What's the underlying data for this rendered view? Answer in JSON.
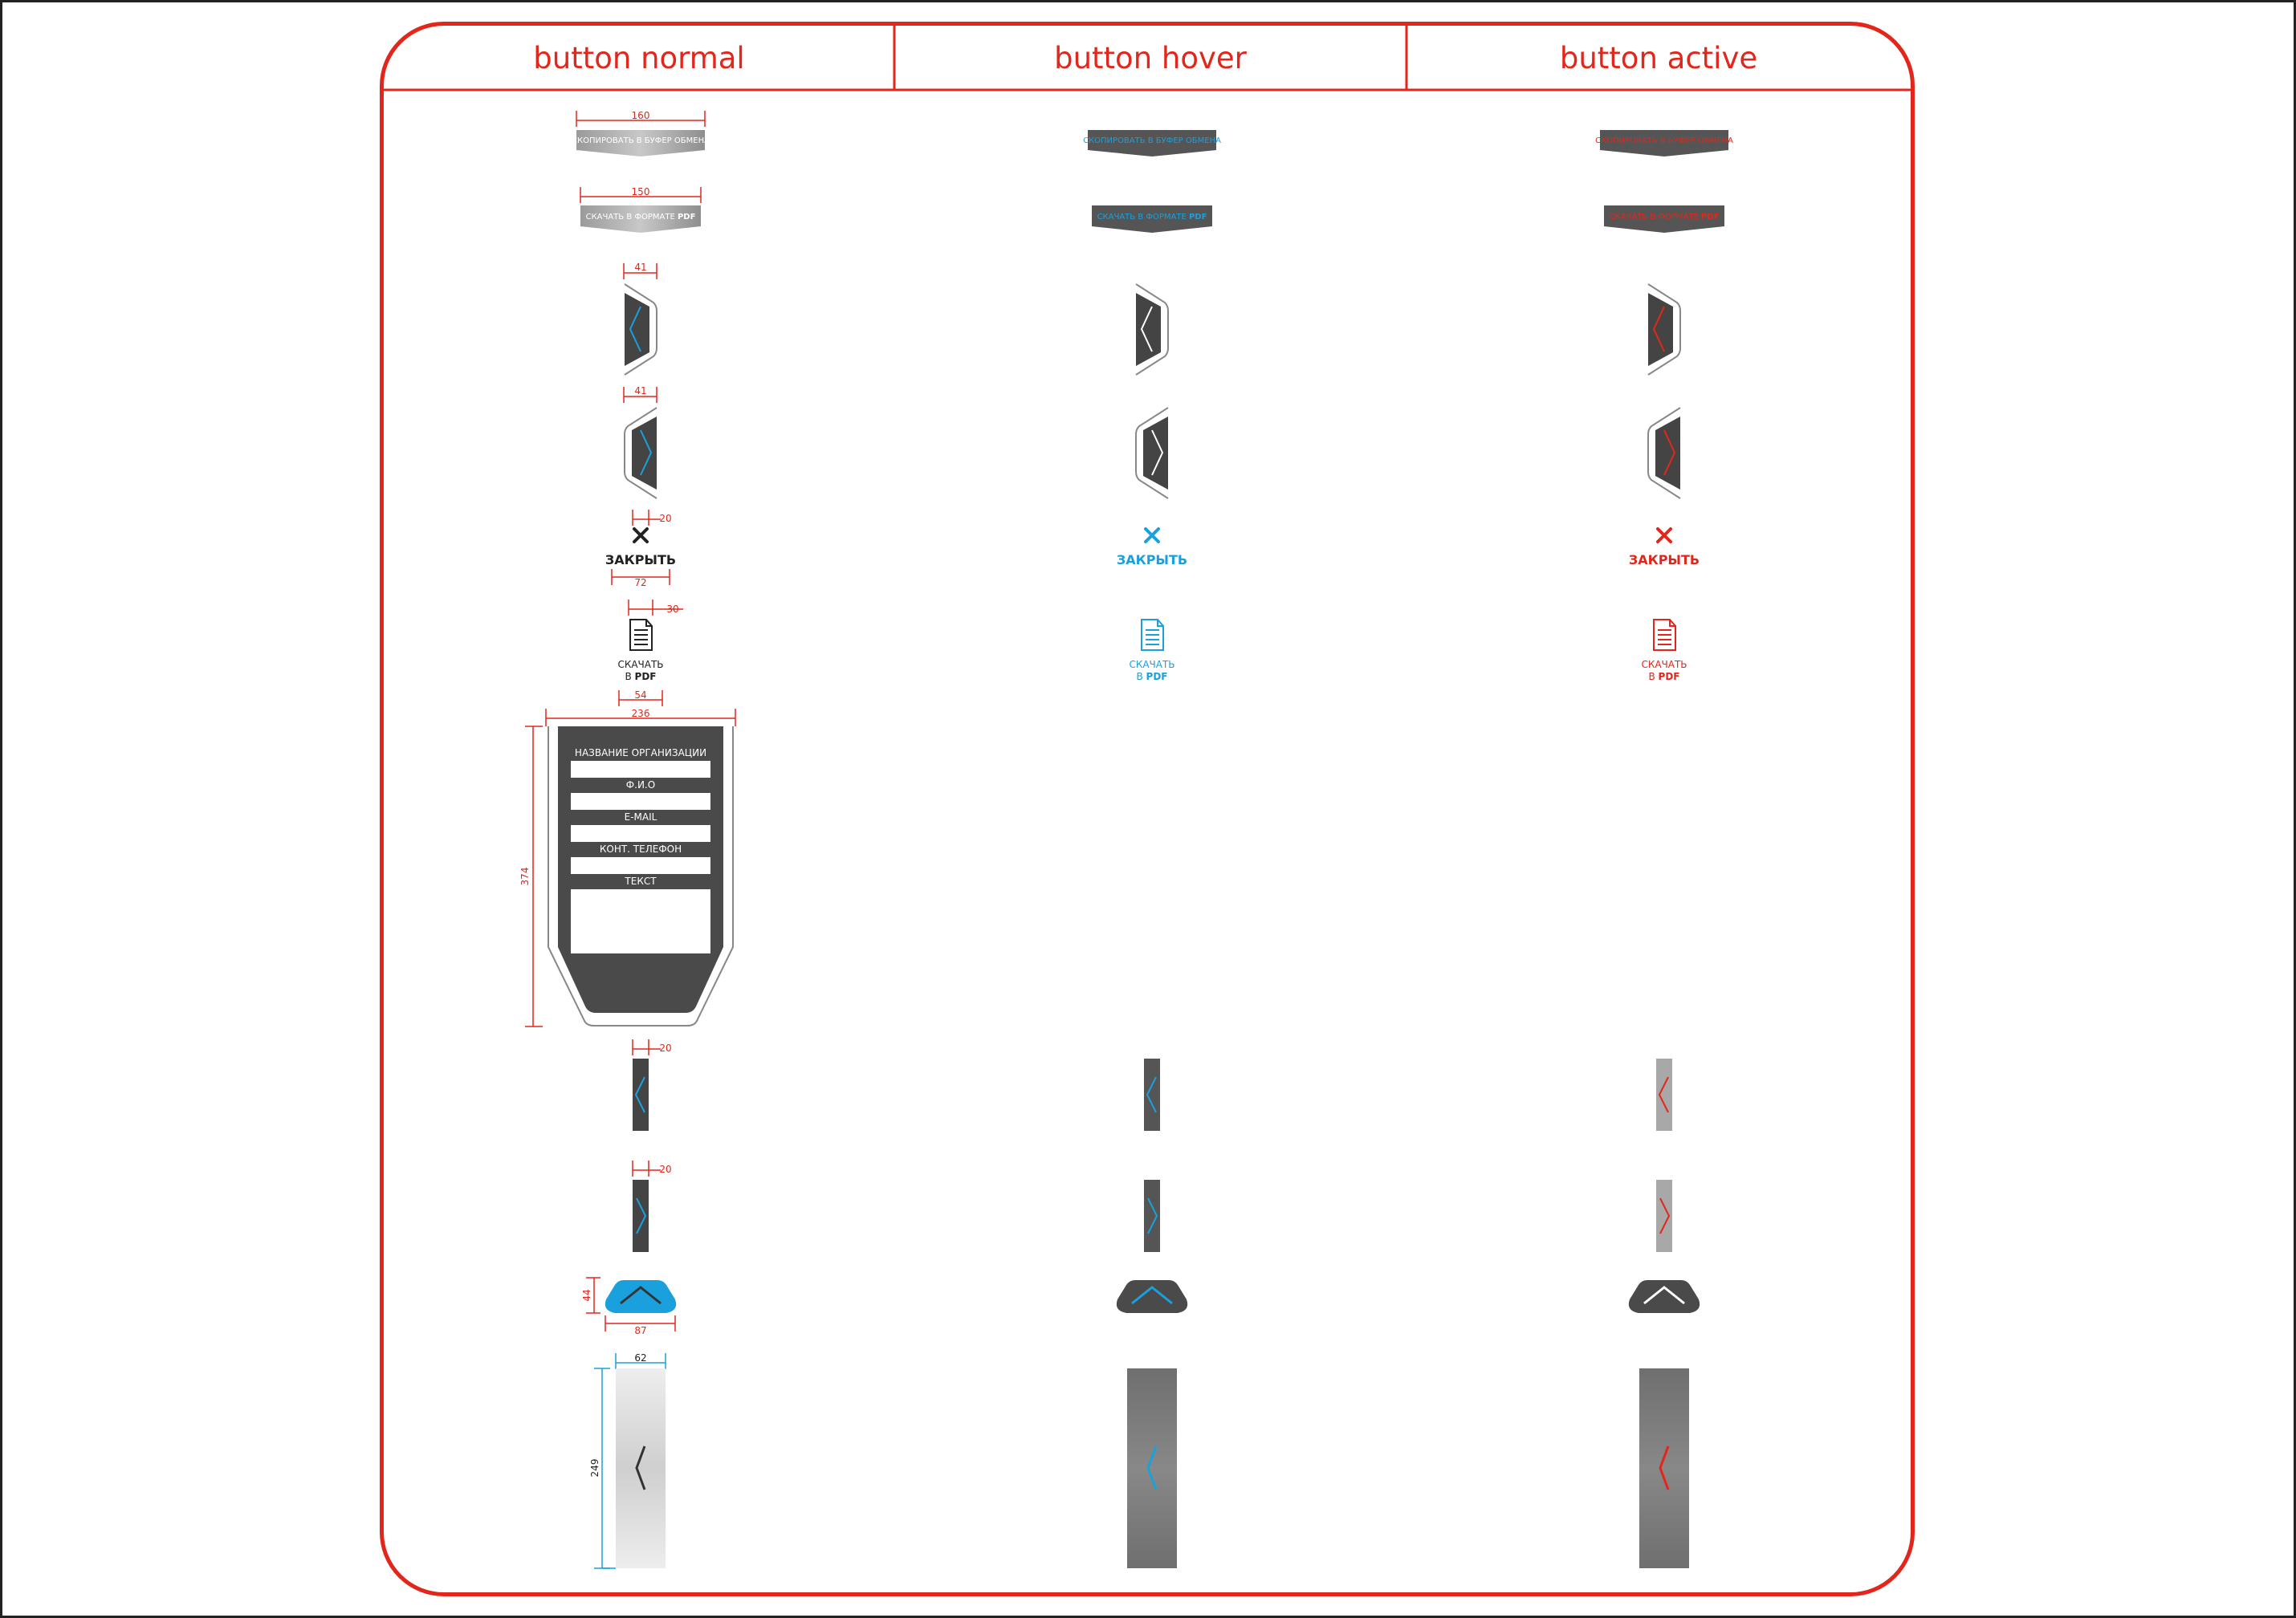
{
  "headers": [
    "button normal",
    "button hover",
    "button active"
  ],
  "colors": {
    "frame": "#e3261b",
    "accent_blue": "#1aa0dc",
    "accent_red": "#e3261b",
    "dark": "#4a4a4a",
    "gray": "#777777",
    "light_gray": "#a8a8a8"
  },
  "dimensions": {
    "copy_button_width": "160",
    "pdf_button_width": "150",
    "left_arrow_width": "41",
    "right_arrow_width": "41",
    "close_icon_size": "20",
    "close_label_width": "72",
    "doc_icon_size": "30",
    "pdf_label_width": "54",
    "form_width": "236",
    "form_height": "374",
    "slim_left_width": "20",
    "slim_right_width": "20",
    "up_button_height": "44",
    "up_button_width": "87",
    "tall_panel_width": "62",
    "tall_panel_height": "249"
  },
  "buttons": {
    "copy_label": "СКОПИРОВАТЬ В БУФЕР ОБМЕНА",
    "pdf_label_prefix": "СКАЧАТЬ В ФОРМАТЕ ",
    "pdf_label_bold": "PDF",
    "close_label": "ЗАКРЫТЬ",
    "download_line1": "СКАЧАТЬ",
    "download_line2_prefix": "В ",
    "download_line2_bold": "PDF"
  },
  "form": {
    "fields": [
      "НАЗВАНИЕ ОРГАНИЗАЦИИ",
      "Ф.И.О",
      "E-MAIL",
      "КОНТ. ТЕЛЕФОН",
      "ТЕКСТ"
    ]
  }
}
